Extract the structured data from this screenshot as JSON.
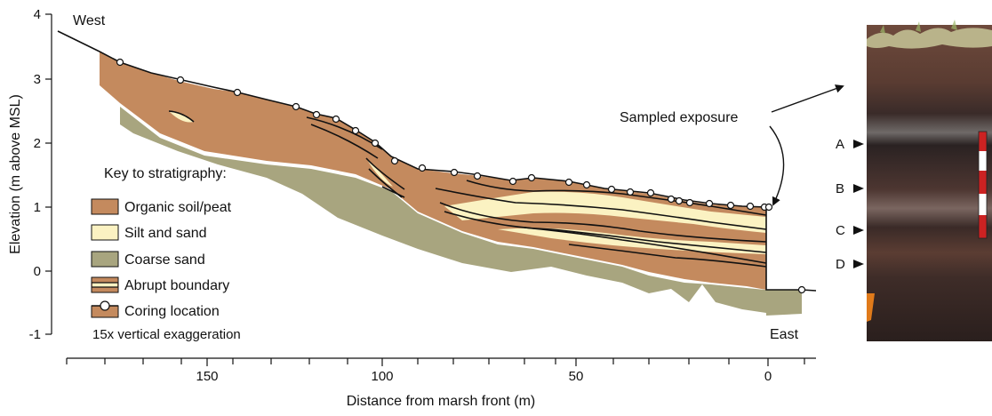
{
  "figure": {
    "y_axis": {
      "label": "Elevation (m above MSL)",
      "ticks": [
        "4",
        "3",
        "2",
        "1",
        "0",
        "-1"
      ]
    },
    "x_axis": {
      "label": "Distance from marsh front (m)",
      "ticks": [
        "150",
        "100",
        "50",
        "0"
      ]
    },
    "labels": {
      "west": "West",
      "east": "East",
      "sampled_exposure": "Sampled exposure"
    },
    "key": {
      "title": "Key to stratigraphy:",
      "items": [
        {
          "label": "Organic soil/peat",
          "color": "#c48a5e"
        },
        {
          "label": "Silt and sand",
          "color": "#fbf2c2"
        },
        {
          "label": "Coarse sand",
          "color": "#a8a57f"
        },
        {
          "label": "Abrupt boundary",
          "color": "#c48a5e"
        },
        {
          "label": "Coring location",
          "color": "#c48a5e"
        }
      ],
      "note": "15x vertical exaggeration"
    },
    "photo": {
      "markers": [
        "A",
        "B",
        "C",
        "D"
      ]
    },
    "colors": {
      "peat": "#c48a5e",
      "silt": "#fbf2c2",
      "coarse_sand": "#a8a57f"
    }
  }
}
